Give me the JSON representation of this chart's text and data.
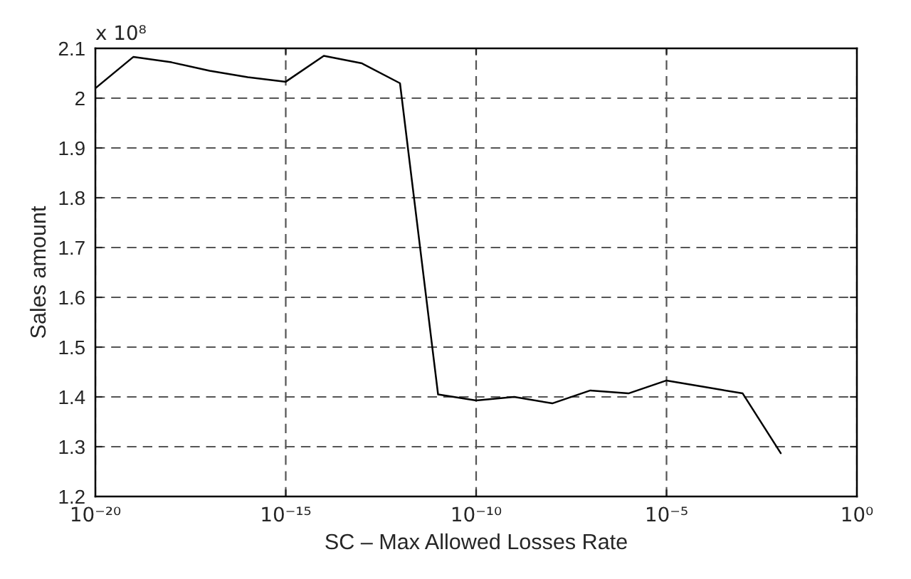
{
  "chart_data": {
    "type": "line",
    "xlabel": "SC – Max Allowed Losses Rate",
    "ylabel": "Sales amount",
    "annotations": [
      "x 10⁸"
    ],
    "x": [
      1e-20,
      1e-19,
      1e-18,
      1e-17,
      1e-16,
      1e-15,
      1e-14,
      1e-13,
      1e-12,
      1e-11,
      1e-10,
      1e-09,
      1e-08,
      1e-07,
      1e-06,
      1e-05,
      0.0001,
      0.001,
      0.01
    ],
    "series": [
      {
        "color": "#000000",
        "values": [
          2.02,
          2.083,
          2.072,
          2.055,
          2.042,
          2.033,
          2.085,
          2.07,
          2.03,
          1.405,
          1.393,
          1.4,
          1.387,
          1.413,
          1.407,
          1.433,
          1.42,
          1.407,
          1.287
        ]
      }
    ],
    "log": "x",
    "xlim": [
      1e-20,
      1
    ],
    "xticks": [
      {
        "value": 1e-20,
        "label": "10⁻²⁰"
      },
      {
        "value": 1e-15,
        "label": "10⁻¹⁵"
      },
      {
        "value": 1e-10,
        "label": "10⁻¹⁰"
      },
      {
        "value": 1e-05,
        "label": "10⁻⁵"
      },
      {
        "value": 1,
        "label": "10⁰"
      }
    ],
    "ylim": [
      1.2,
      2.1
    ],
    "yticks": [
      1.2,
      1.3,
      1.4,
      1.5,
      1.6,
      1.7,
      1.8,
      1.9,
      2,
      2.1
    ],
    "grid": true,
    "line_style": "solid",
    "marker": "none",
    "legend": false
  }
}
